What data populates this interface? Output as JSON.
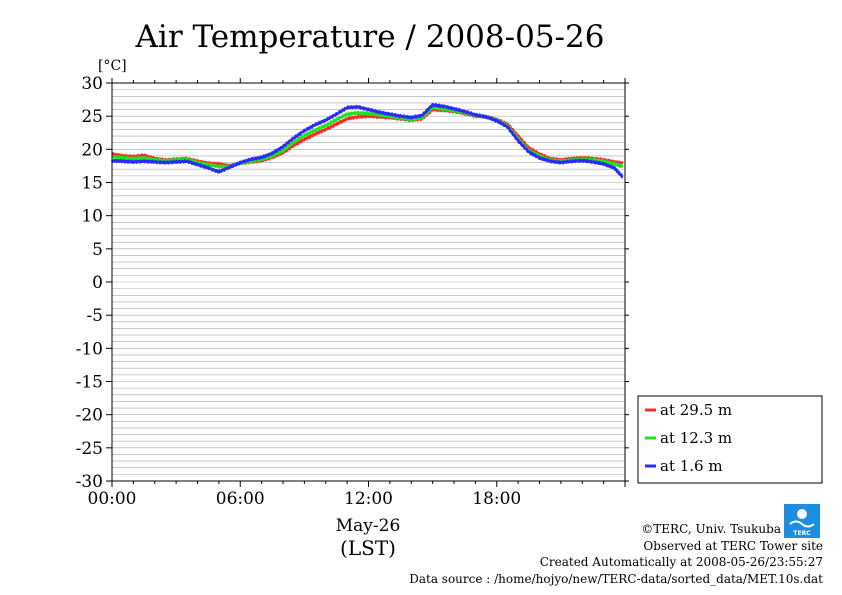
{
  "chart_data": {
    "type": "line",
    "title": "Air Temperature / 2008-05-26",
    "ylabel": "[°C]",
    "xlabel": "(LST)",
    "date_label": "May-26",
    "ylim": [
      -30,
      30
    ],
    "xlim": [
      0,
      24
    ],
    "yticks": [
      30,
      25,
      20,
      15,
      10,
      5,
      0,
      -5,
      -10,
      -15,
      -20,
      -25,
      -30
    ],
    "xticks": [
      {
        "value": 0,
        "label": "00:00"
      },
      {
        "value": 6,
        "label": "06:00"
      },
      {
        "value": 12,
        "label": "12:00"
      },
      {
        "value": 18,
        "label": "18:00"
      }
    ],
    "grid": true,
    "legend_position": "right",
    "series": [
      {
        "name": "at 29.5 m",
        "color": "#ff2a2a",
        "x": [
          0,
          0.5,
          1,
          1.5,
          2,
          2.5,
          3,
          3.5,
          4,
          4.5,
          5,
          5.5,
          6,
          6.5,
          7,
          7.5,
          8,
          8.5,
          9,
          9.5,
          10,
          10.5,
          11,
          11.5,
          12,
          12.5,
          13,
          13.5,
          14,
          14.5,
          15,
          15.5,
          16,
          16.5,
          17,
          17.5,
          18,
          18.5,
          19,
          19.5,
          20,
          20.5,
          21,
          21.5,
          22,
          22.5,
          23,
          23.5,
          23.9
        ],
        "y": [
          19.3,
          19.0,
          18.9,
          19.1,
          18.6,
          18.4,
          18.5,
          18.6,
          18.2,
          17.9,
          17.8,
          17.5,
          17.9,
          18.1,
          18.3,
          18.8,
          19.5,
          20.6,
          21.5,
          22.3,
          23.0,
          23.8,
          24.6,
          24.9,
          25.0,
          24.9,
          24.8,
          24.6,
          24.4,
          24.6,
          26.0,
          25.9,
          25.7,
          25.4,
          25.0,
          24.9,
          24.5,
          23.8,
          22.0,
          20.2,
          19.3,
          18.6,
          18.4,
          18.6,
          18.7,
          18.6,
          18.4,
          18.1,
          17.9
        ]
      },
      {
        "name": "at 12.3 m",
        "color": "#19e619",
        "x": [
          0,
          0.5,
          1,
          1.5,
          2,
          2.5,
          3,
          3.5,
          4,
          4.5,
          5,
          5.5,
          6,
          6.5,
          7,
          7.5,
          8,
          8.5,
          9,
          9.5,
          10,
          10.5,
          11,
          11.5,
          12,
          12.5,
          13,
          13.5,
          14,
          14.5,
          15,
          15.5,
          16,
          16.5,
          17,
          17.5,
          18,
          18.5,
          19,
          19.5,
          20,
          20.5,
          21,
          21.5,
          22,
          22.5,
          23,
          23.5,
          23.9
        ],
        "y": [
          18.9,
          18.7,
          18.6,
          18.7,
          18.4,
          18.3,
          18.4,
          18.5,
          18.0,
          17.7,
          17.4,
          17.4,
          17.9,
          18.2,
          18.5,
          19.0,
          19.8,
          21.1,
          22.1,
          22.9,
          23.6,
          24.5,
          25.3,
          25.5,
          25.4,
          25.2,
          25.0,
          24.7,
          24.5,
          24.8,
          26.3,
          26.1,
          25.8,
          25.5,
          25.1,
          24.9,
          24.4,
          23.6,
          21.6,
          19.8,
          19.0,
          18.4,
          18.2,
          18.4,
          18.5,
          18.4,
          18.2,
          17.8,
          17.4
        ]
      },
      {
        "name": "at 1.6 m",
        "color": "#2a2aff",
        "x": [
          0,
          0.5,
          1,
          1.5,
          2,
          2.5,
          3,
          3.5,
          4,
          4.5,
          5,
          5.5,
          6,
          6.5,
          7,
          7.5,
          8,
          8.5,
          9,
          9.5,
          10,
          10.5,
          11,
          11.5,
          12,
          12.5,
          13,
          13.5,
          14,
          14.5,
          15,
          15.5,
          16,
          16.5,
          17,
          17.5,
          18,
          18.5,
          19,
          19.5,
          20,
          20.5,
          21,
          21.5,
          22,
          22.5,
          23,
          23.5,
          23.9
        ],
        "y": [
          18.3,
          18.2,
          18.1,
          18.2,
          18.1,
          18.0,
          18.1,
          18.2,
          17.7,
          17.2,
          16.6,
          17.3,
          18.0,
          18.5,
          18.8,
          19.4,
          20.4,
          21.7,
          22.8,
          23.7,
          24.4,
          25.3,
          26.3,
          26.4,
          26.0,
          25.6,
          25.3,
          25.0,
          24.8,
          25.1,
          26.7,
          26.5,
          26.1,
          25.7,
          25.2,
          24.9,
          24.3,
          23.4,
          21.3,
          19.6,
          18.7,
          18.2,
          18.0,
          18.2,
          18.3,
          18.1,
          17.8,
          17.2,
          15.8
        ]
      }
    ]
  },
  "credits": {
    "copyright": "©TERC, Univ. Tsukuba",
    "observed": "Observed at TERC Tower site",
    "created": "Created Automatically at 2008-05-26/23:55:27",
    "source": "Data source : /home/hojyo/new/TERC-data/sorted_data/MET.10s.dat",
    "logo_text": "TERC"
  }
}
